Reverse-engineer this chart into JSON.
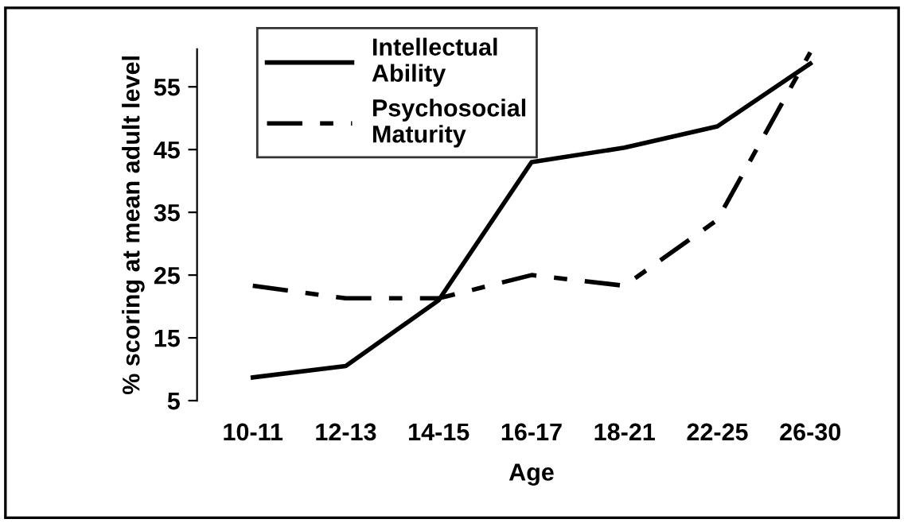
{
  "chart_data": {
    "type": "line",
    "xlabel": "Age",
    "ylabel": "% scoring at mean adult level",
    "categories": [
      "10-11",
      "12-13",
      "14-15",
      "16-17",
      "18-21",
      "22-25",
      "26-30"
    ],
    "series": [
      {
        "name": "Intellectual Ability",
        "color": "#000000",
        "line_style": "solid",
        "values": [
          8.7,
          10.5,
          21,
          43,
          45.3,
          48.7,
          58.7
        ]
      },
      {
        "name": "Psychosocial Maturity",
        "color": "#000000",
        "line_style": "dashed",
        "values": [
          23.3,
          21.3,
          21.3,
          25,
          23.3,
          33.8,
          60.5
        ]
      }
    ],
    "ylim": [
      5,
      61
    ],
    "yticks": [
      5,
      15,
      25,
      35,
      45,
      55
    ],
    "grid": false,
    "legend": "top left",
    "marker": "none"
  }
}
